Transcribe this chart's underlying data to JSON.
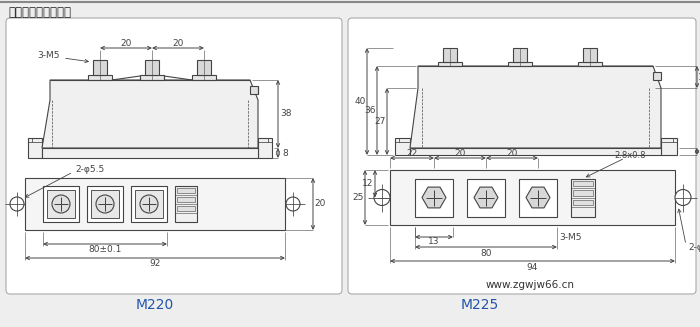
{
  "title": "模块外型图、安装图",
  "m220_label": "M220",
  "m225_label": "M225",
  "website": "www.zgwjw66.cn",
  "bg_color": "#eeeeee",
  "panel_color": "#ffffff",
  "line_color": "#444444",
  "title_color": "#222222",
  "model_color": "#2255aa",
  "website_color": "#333333",
  "note_color": "#555555"
}
